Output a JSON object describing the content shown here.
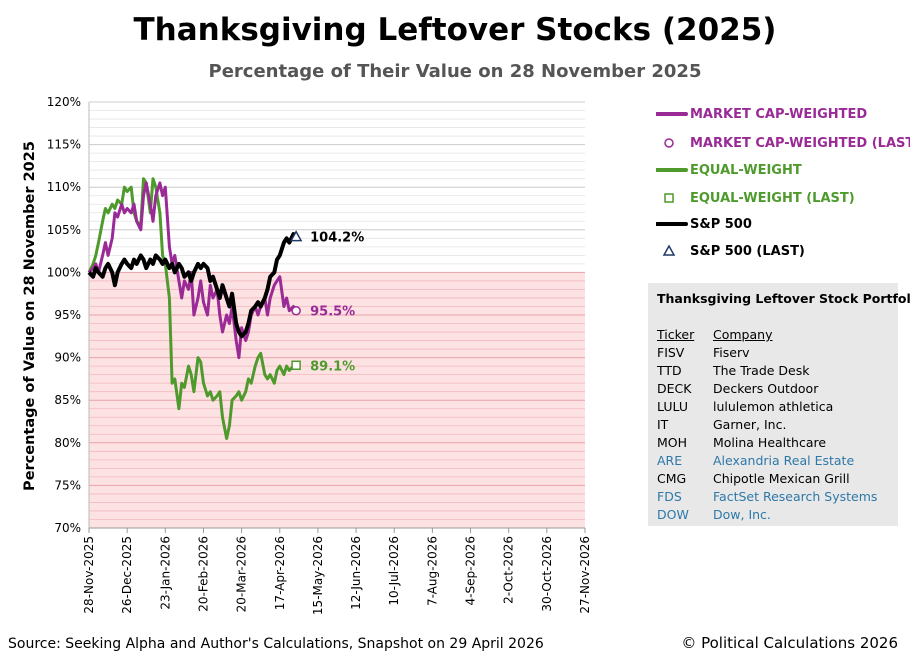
{
  "title": "Thanksgiving Leftover Stocks (2025)",
  "subtitle": "Percentage of Their Value on 28 November 2025",
  "source": "Source: Seeking Alpha and Author's Calculations, Snapshot on 29 April 2026",
  "copyright": "© Political Calculations 2026",
  "colors": {
    "market_cap": "#9a2a96",
    "equal_weight": "#4f9a2c",
    "sp500": "#000000",
    "shade": "#fde2e4",
    "link_blue": "#2e78a8"
  },
  "legend": [
    {
      "label": "MARKET CAP-WEIGHTED",
      "symbol": "line",
      "color": "#9a2a96"
    },
    {
      "label": "MARKET CAP-WEIGHTED (LAST)",
      "symbol": "circle",
      "color": "#9a2a96"
    },
    {
      "label": "EQUAL-WEIGHT",
      "symbol": "line",
      "color": "#4f9a2c"
    },
    {
      "label": "EQUAL-WEIGHT (LAST)",
      "symbol": "square",
      "color": "#4f9a2c"
    },
    {
      "label": "S&P 500",
      "symbol": "line",
      "color": "#000000"
    },
    {
      "label": "S&P 500 (LAST)",
      "symbol": "triangle",
      "color": "#1f3864"
    }
  ],
  "portfolio": {
    "title": "Thanksgiving Leftover Stock Portfolio",
    "ticker_header": "Ticker",
    "company_header": "Company",
    "rows": [
      {
        "ticker": "FISV",
        "company": "Fiserv",
        "highlight": false
      },
      {
        "ticker": "TTD",
        "company": "The Trade Desk",
        "highlight": false
      },
      {
        "ticker": "DECK",
        "company": "Deckers Outdoor",
        "highlight": false
      },
      {
        "ticker": "LULU",
        "company": "lululemon athletica",
        "highlight": false
      },
      {
        "ticker": "IT",
        "company": "Garner, Inc.",
        "highlight": false
      },
      {
        "ticker": "MOH",
        "company": "Molina Healthcare",
        "highlight": false
      },
      {
        "ticker": "ARE",
        "company": "Alexandria Real Estate",
        "highlight": true
      },
      {
        "ticker": "CMG",
        "company": "Chipotle Mexican Grill",
        "highlight": false
      },
      {
        "ticker": "FDS",
        "company": "FactSet Research Systems",
        "highlight": true
      },
      {
        "ticker": "DOW",
        "company": "Dow, Inc.",
        "highlight": true
      }
    ]
  },
  "chart_data": {
    "type": "line",
    "title": "Thanksgiving Leftover Stocks (2025)",
    "subtitle": "Percentage of Their Value on 28 November 2025",
    "ylabel": "Percentage of Value on 28 November 2025",
    "xlabel": "",
    "ylim": [
      70,
      120
    ],
    "yticks": [
      70,
      75,
      80,
      85,
      90,
      95,
      100,
      105,
      110,
      115,
      120
    ],
    "ytick_labels": [
      "70%",
      "75%",
      "80%",
      "85%",
      "90%",
      "95%",
      "100%",
      "105%",
      "110%",
      "115%",
      "120%"
    ],
    "xlim": [
      "2025-11-28",
      "2026-11-27"
    ],
    "xticks": [
      "2025-11-28",
      "2025-12-26",
      "2026-01-23",
      "2026-02-20",
      "2026-03-20",
      "2026-04-17",
      "2026-05-15",
      "2026-06-12",
      "2026-07-10",
      "2026-08-07",
      "2026-09-04",
      "2026-10-02",
      "2026-10-30",
      "2026-11-27"
    ],
    "xtick_labels": [
      "28-Nov-2025",
      "26-Dec-2025",
      "23-Jan-2026",
      "20-Feb-2026",
      "20-Mar-2026",
      "17-Apr-2026",
      "15-May-2026",
      "12-Jun-2026",
      "10-Jul-2026",
      "7-Aug-2026",
      "4-Sep-2026",
      "2-Oct-2026",
      "30-Oct-2026",
      "27-Nov-2026"
    ],
    "grid": "horizontal minor lines",
    "shaded_below": 100,
    "legend_position": "right",
    "series": [
      {
        "name": "MARKET CAP-WEIGHTED",
        "color": "#9a2a96",
        "x": [
          "2025-11-28",
          "2025-12-01",
          "2025-12-03",
          "2025-12-05",
          "2025-12-08",
          "2025-12-10",
          "2025-12-12",
          "2025-12-15",
          "2025-12-17",
          "2025-12-19",
          "2025-12-22",
          "2025-12-24",
          "2025-12-26",
          "2025-12-29",
          "2025-12-31",
          "2026-01-02",
          "2026-01-05",
          "2026-01-07",
          "2026-01-09",
          "2026-01-12",
          "2026-01-14",
          "2026-01-16",
          "2026-01-19",
          "2026-01-21",
          "2026-01-23",
          "2026-01-26",
          "2026-01-28",
          "2026-01-30",
          "2026-02-02",
          "2026-02-04",
          "2026-02-06",
          "2026-02-09",
          "2026-02-11",
          "2026-02-13",
          "2026-02-16",
          "2026-02-18",
          "2026-02-20",
          "2026-02-23",
          "2026-02-25",
          "2026-02-27",
          "2026-03-02",
          "2026-03-04",
          "2026-03-06",
          "2026-03-09",
          "2026-03-11",
          "2026-03-13",
          "2026-03-16",
          "2026-03-18",
          "2026-03-20",
          "2026-03-23",
          "2026-03-25",
          "2026-03-27",
          "2026-03-30",
          "2026-04-01",
          "2026-04-03",
          "2026-04-06",
          "2026-04-08",
          "2026-04-10",
          "2026-04-13",
          "2026-04-15",
          "2026-04-17",
          "2026-04-20",
          "2026-04-22",
          "2026-04-24",
          "2026-04-27",
          "2026-04-29"
        ],
        "values": [
          100,
          100.5,
          101,
          100,
          102,
          103.5,
          102,
          104,
          107,
          106.5,
          108,
          107,
          107.5,
          107,
          108,
          106,
          105,
          109,
          110.5,
          108,
          106,
          109,
          110.5,
          109,
          110,
          103,
          101,
          102,
          99,
          97,
          99,
          98,
          100,
          95,
          97,
          99,
          96.5,
          95,
          98.5,
          97,
          98,
          95,
          93,
          95,
          94,
          96,
          92,
          90,
          93.5,
          92,
          93,
          95,
          96,
          95,
          96,
          97,
          95,
          97,
          98.5,
          99,
          99.5,
          96,
          97,
          95.5,
          96,
          95.5
        ]
      },
      {
        "name": "EQUAL-WEIGHT",
        "color": "#4f9a2c",
        "x": [
          "2025-11-28",
          "2025-12-01",
          "2025-12-03",
          "2025-12-05",
          "2025-12-08",
          "2025-12-10",
          "2025-12-12",
          "2025-12-15",
          "2025-12-17",
          "2025-12-19",
          "2025-12-22",
          "2025-12-24",
          "2025-12-26",
          "2025-12-29",
          "2025-12-31",
          "2026-01-02",
          "2026-01-05",
          "2026-01-07",
          "2026-01-09",
          "2026-01-12",
          "2026-01-14",
          "2026-01-16",
          "2026-01-19",
          "2026-01-21",
          "2026-01-23",
          "2026-01-26",
          "2026-01-28",
          "2026-01-30",
          "2026-02-02",
          "2026-02-04",
          "2026-02-06",
          "2026-02-09",
          "2026-02-11",
          "2026-02-13",
          "2026-02-16",
          "2026-02-18",
          "2026-02-20",
          "2026-02-23",
          "2026-02-25",
          "2026-02-27",
          "2026-03-02",
          "2026-03-04",
          "2026-03-06",
          "2026-03-09",
          "2026-03-11",
          "2026-03-13",
          "2026-03-16",
          "2026-03-18",
          "2026-03-20",
          "2026-03-23",
          "2026-03-25",
          "2026-03-27",
          "2026-03-30",
          "2026-04-01",
          "2026-04-03",
          "2026-04-06",
          "2026-04-08",
          "2026-04-10",
          "2026-04-13",
          "2026-04-15",
          "2026-04-17",
          "2026-04-20",
          "2026-04-22",
          "2026-04-24",
          "2026-04-27",
          "2026-04-29"
        ],
        "values": [
          100,
          101,
          102,
          103.5,
          106,
          107.5,
          107,
          108,
          107.5,
          108.5,
          108,
          110,
          109.5,
          110,
          107,
          106,
          105.5,
          111,
          110.5,
          107,
          111,
          110,
          107,
          102,
          101,
          97,
          87,
          87.5,
          84,
          87,
          86.5,
          89,
          88,
          86,
          90,
          89.5,
          87,
          85.5,
          86,
          85,
          85.5,
          86,
          83,
          80.5,
          82,
          85,
          85.5,
          86,
          85,
          86,
          87.5,
          87,
          89,
          90,
          90.5,
          88,
          87.5,
          88,
          87,
          88.5,
          89,
          88,
          89,
          88.5,
          89,
          89.1
        ]
      },
      {
        "name": "S&P 500",
        "color": "#000000",
        "x": [
          "2025-11-28",
          "2025-12-01",
          "2025-12-03",
          "2025-12-05",
          "2025-12-08",
          "2025-12-10",
          "2025-12-12",
          "2025-12-15",
          "2025-12-17",
          "2025-12-19",
          "2025-12-22",
          "2025-12-24",
          "2025-12-26",
          "2025-12-29",
          "2025-12-31",
          "2026-01-02",
          "2026-01-05",
          "2026-01-07",
          "2026-01-09",
          "2026-01-12",
          "2026-01-14",
          "2026-01-16",
          "2026-01-19",
          "2026-01-21",
          "2026-01-23",
          "2026-01-26",
          "2026-01-28",
          "2026-01-30",
          "2026-02-02",
          "2026-02-04",
          "2026-02-06",
          "2026-02-09",
          "2026-02-11",
          "2026-02-13",
          "2026-02-16",
          "2026-02-18",
          "2026-02-20",
          "2026-02-23",
          "2026-02-25",
          "2026-02-27",
          "2026-03-02",
          "2026-03-04",
          "2026-03-06",
          "2026-03-09",
          "2026-03-11",
          "2026-03-13",
          "2026-03-16",
          "2026-03-18",
          "2026-03-20",
          "2026-03-23",
          "2026-03-25",
          "2026-03-27",
          "2026-03-30",
          "2026-04-01",
          "2026-04-03",
          "2026-04-06",
          "2026-04-08",
          "2026-04-10",
          "2026-04-13",
          "2026-04-15",
          "2026-04-17",
          "2026-04-20",
          "2026-04-22",
          "2026-04-24",
          "2026-04-27",
          "2026-04-29"
        ],
        "values": [
          100,
          99.5,
          100.5,
          100,
          99.5,
          100.5,
          101,
          100,
          98.5,
          100,
          101,
          101.5,
          101,
          100.5,
          101.5,
          101,
          102,
          101.5,
          100.5,
          101.5,
          101,
          102,
          101.5,
          101,
          101.5,
          100.5,
          101,
          100,
          101,
          100.5,
          99.5,
          100,
          99,
          100,
          101,
          100.5,
          101,
          100.5,
          99,
          99.5,
          98,
          97,
          98.5,
          97,
          96,
          97.5,
          94,
          93,
          92.5,
          93,
          94,
          95.5,
          96,
          96.5,
          96,
          97,
          98,
          99.5,
          100,
          101.5,
          102,
          103.5,
          104,
          103.5,
          104.5,
          104.2
        ]
      }
    ],
    "last_values": [
      {
        "series": "MARKET CAP-WEIGHTED",
        "x": "2026-04-29",
        "value": 95.5,
        "label": "95.5%",
        "marker": "circle"
      },
      {
        "series": "EQUAL-WEIGHT",
        "x": "2026-04-29",
        "value": 89.1,
        "label": "89.1%",
        "marker": "square"
      },
      {
        "series": "S&P 500",
        "x": "2026-04-29",
        "value": 104.2,
        "label": "104.2%",
        "marker": "triangle"
      }
    ]
  }
}
